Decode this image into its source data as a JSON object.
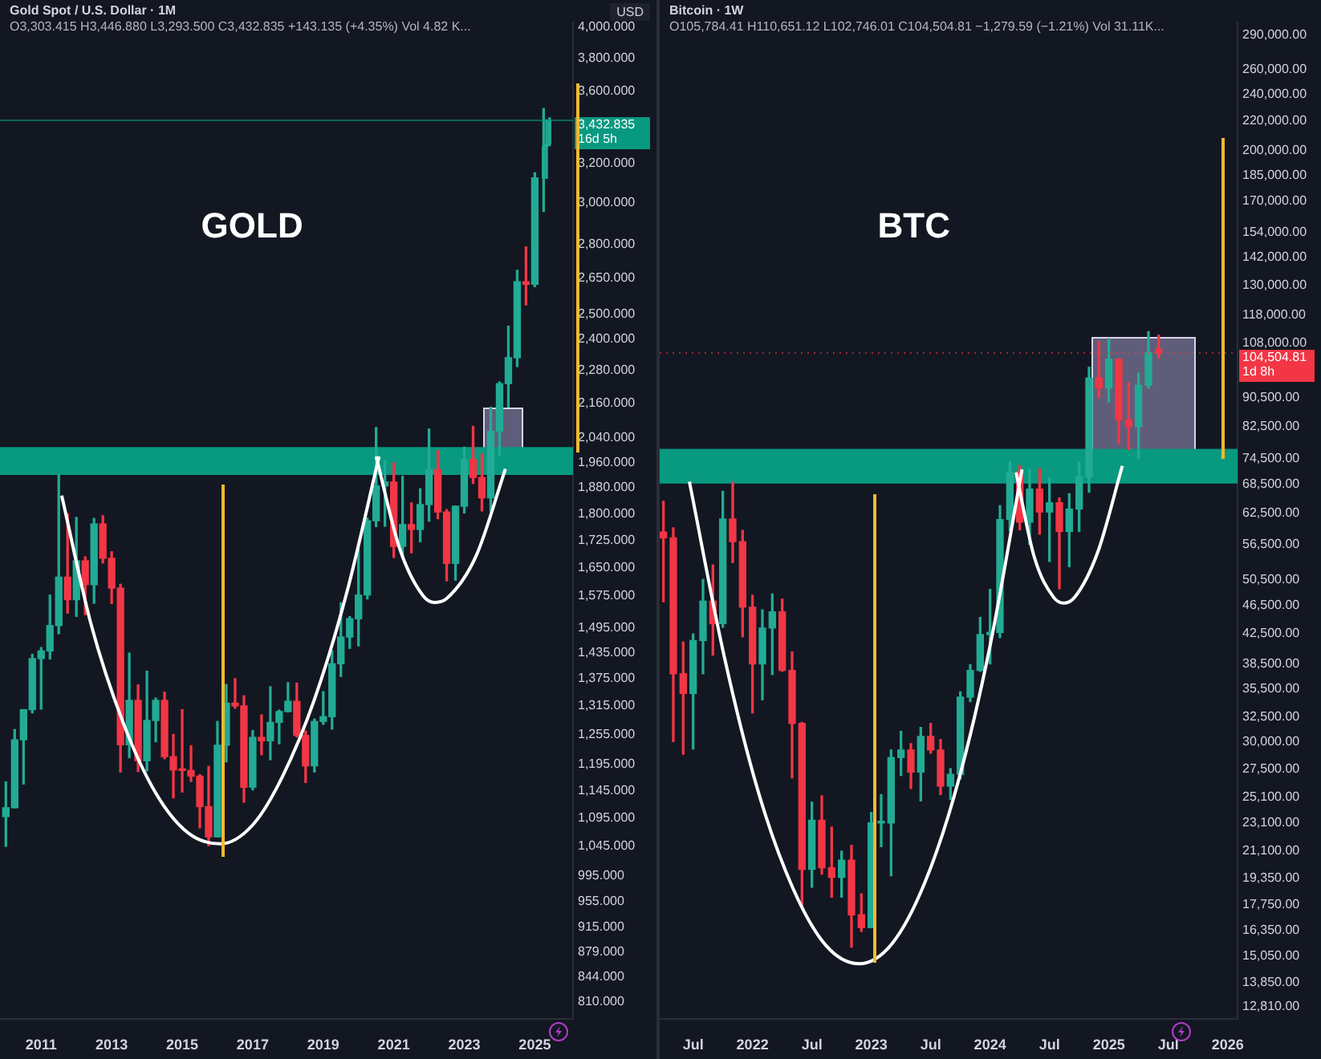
{
  "chart_data": [
    {
      "type": "candlestick",
      "title": "Gold Spot / U.S. Dollar · 1M",
      "subtitle": "O3,303.415 H3,446.880 L3,293.500 C3,432.835 +143.135 (+4.35%) Vol 4.82 K...",
      "ylabel": "USD",
      "annotations": [
        "GOLD"
      ],
      "log": true,
      "x": [
        "2010-01",
        "2010-04",
        "2010-07",
        "2010-10",
        "2011-01",
        "2011-04",
        "2011-07",
        "2011-10",
        "2012-01",
        "2012-04",
        "2012-07",
        "2012-10",
        "2013-01",
        "2013-04",
        "2013-07",
        "2013-10",
        "2014-01",
        "2014-04",
        "2014-07",
        "2014-10",
        "2015-01",
        "2015-04",
        "2015-07",
        "2015-10",
        "2016-01",
        "2016-04",
        "2016-07",
        "2016-10",
        "2017-01",
        "2017-04",
        "2017-07",
        "2017-10",
        "2018-01",
        "2018-04",
        "2018-07",
        "2018-10",
        "2019-01",
        "2019-04",
        "2019-07",
        "2019-10",
        "2020-01",
        "2020-04",
        "2020-07",
        "2020-10",
        "2021-01",
        "2021-04",
        "2021-07",
        "2021-10",
        "2022-01",
        "2022-04",
        "2022-07",
        "2022-10",
        "2023-01",
        "2023-04",
        "2023-07",
        "2023-10",
        "2024-01",
        "2024-04",
        "2024-07",
        "2024-10",
        "2025-01",
        "2025-04",
        "2025-05",
        "2025-06"
      ],
      "ohlc": [
        [
          1097,
          1161,
          1045,
          1113
        ],
        [
          1113,
          1265,
          1113,
          1244
        ],
        [
          1244,
          1307,
          1157,
          1307
        ],
        [
          1307,
          1431,
          1300,
          1421
        ],
        [
          1421,
          1447,
          1308,
          1439
        ],
        [
          1439,
          1577,
          1420,
          1500
        ],
        [
          1500,
          1920,
          1480,
          1624
        ],
        [
          1624,
          1802,
          1531,
          1565
        ],
        [
          1565,
          1791,
          1523,
          1668
        ],
        [
          1668,
          1679,
          1527,
          1604
        ],
        [
          1604,
          1788,
          1556,
          1772
        ],
        [
          1772,
          1796,
          1662,
          1675
        ],
        [
          1675,
          1693,
          1555,
          1595
        ],
        [
          1595,
          1605,
          1180,
          1234
        ],
        [
          1234,
          1434,
          1208,
          1327
        ],
        [
          1327,
          1361,
          1181,
          1202
        ],
        [
          1202,
          1392,
          1182,
          1284
        ],
        [
          1284,
          1332,
          1240,
          1327
        ],
        [
          1327,
          1345,
          1206,
          1210
        ],
        [
          1210,
          1255,
          1131,
          1184
        ],
        [
          1184,
          1307,
          1142,
          1183
        ],
        [
          1183,
          1232,
          1162,
          1172
        ],
        [
          1172,
          1175,
          1077,
          1115
        ],
        [
          1115,
          1191,
          1046,
          1061
        ],
        [
          1061,
          1282,
          1061,
          1233
        ],
        [
          1233,
          1362,
          1200,
          1321
        ],
        [
          1321,
          1375,
          1310,
          1315
        ],
        [
          1315,
          1337,
          1123,
          1151
        ],
        [
          1151,
          1263,
          1146,
          1249
        ],
        [
          1249,
          1296,
          1214,
          1242
        ],
        [
          1242,
          1357,
          1204,
          1280
        ],
        [
          1280,
          1306,
          1236,
          1303
        ],
        [
          1303,
          1366,
          1302,
          1325
        ],
        [
          1325,
          1365,
          1250,
          1253
        ],
        [
          1253,
          1262,
          1160,
          1192
        ],
        [
          1192,
          1287,
          1180,
          1282
        ],
        [
          1282,
          1346,
          1276,
          1292
        ],
        [
          1292,
          1439,
          1266,
          1409
        ],
        [
          1409,
          1557,
          1380,
          1472
        ],
        [
          1472,
          1522,
          1445,
          1517
        ],
        [
          1517,
          1703,
          1451,
          1577
        ],
        [
          1577,
          1789,
          1567,
          1781
        ],
        [
          1781,
          2075,
          1764,
          1886
        ],
        [
          1886,
          1965,
          1765,
          1898
        ],
        [
          1898,
          1959,
          1677,
          1708
        ],
        [
          1708,
          1916,
          1677,
          1770
        ],
        [
          1770,
          1834,
          1690,
          1756
        ],
        [
          1756,
          1877,
          1721,
          1829
        ],
        [
          1829,
          2070,
          1780,
          1937
        ],
        [
          1937,
          1998,
          1787,
          1807
        ],
        [
          1807,
          1814,
          1614,
          1661
        ],
        [
          1661,
          1825,
          1616,
          1824
        ],
        [
          1824,
          2009,
          1804,
          1969
        ],
        [
          1969,
          2079,
          1893,
          1912
        ],
        [
          1912,
          1987,
          1810,
          1849
        ],
        [
          1849,
          2146,
          1810,
          2063
        ],
        [
          2063,
          2236,
          1984,
          2230
        ],
        [
          2230,
          2450,
          2146,
          2327
        ],
        [
          2327,
          2685,
          2293,
          2635
        ],
        [
          2635,
          2790,
          2537,
          2624
        ],
        [
          2624,
          3150,
          2614,
          3124
        ],
        [
          3124,
          3500,
          2957,
          3289
        ],
        [
          3289,
          3435,
          3121,
          3303
        ],
        [
          3303.415,
          3446.88,
          3293.5,
          3432.835
        ]
      ],
      "xlim": [
        "2009-11",
        "2026-02"
      ],
      "xticks": [
        "2011",
        "2013",
        "2015",
        "2017",
        "2019",
        "2021",
        "2023",
        "2025"
      ],
      "ylim": [
        787,
        4030
      ],
      "yticks": [
        {
          "value": 4000,
          "label": "4,000.000"
        },
        {
          "value": 3800,
          "label": "3,800.000"
        },
        {
          "value": 3600,
          "label": "3,600.000"
        },
        {
          "value": 3200,
          "label": "3,200.000"
        },
        {
          "value": 3000,
          "label": "3,000.000"
        },
        {
          "value": 2800,
          "label": "2,800.000"
        },
        {
          "value": 2650,
          "label": "2,650.000"
        },
        {
          "value": 2500,
          "label": "2,500.000"
        },
        {
          "value": 2400,
          "label": "2,400.000"
        },
        {
          "value": 2280,
          "label": "2,280.000"
        },
        {
          "value": 2160,
          "label": "2,160.000"
        },
        {
          "value": 2040,
          "label": "2,040.000"
        },
        {
          "value": 1960,
          "label": "1,960.000"
        },
        {
          "value": 1880,
          "label": "1,880.000"
        },
        {
          "value": 1800,
          "label": "1,800.000"
        },
        {
          "value": 1725,
          "label": "1,725.000"
        },
        {
          "value": 1650,
          "label": "1,650.000"
        },
        {
          "value": 1575,
          "label": "1,575.000"
        },
        {
          "value": 1495,
          "label": "1,495.000"
        },
        {
          "value": 1435,
          "label": "1,435.000"
        },
        {
          "value": 1375,
          "label": "1,375.000"
        },
        {
          "value": 1315,
          "label": "1,315.000"
        },
        {
          "value": 1255,
          "label": "1,255.000"
        },
        {
          "value": 1195,
          "label": "1,195.000"
        },
        {
          "value": 1145,
          "label": "1,145.000"
        },
        {
          "value": 1095,
          "label": "1,095.000"
        },
        {
          "value": 1045,
          "label": "1,045.000"
        },
        {
          "value": 995,
          "label": "995.000"
        },
        {
          "value": 955,
          "label": "955.000"
        },
        {
          "value": 915,
          "label": "915.000"
        },
        {
          "value": 879,
          "label": "879.000"
        },
        {
          "value": 844,
          "label": "844.000"
        },
        {
          "value": 810,
          "label": "810.000"
        }
      ],
      "series": [
        {
          "type": "line",
          "color": "#ffffff",
          "x": [
            "2011-08",
            "2012-06",
            "2013-05",
            "2014-04",
            "2015-03",
            "2016-02",
            "2017-01",
            "2017-11",
            "2018-10",
            "2019-09",
            "2020-08"
          ],
          "values": [
            1856,
            1503,
            1278,
            1140,
            1068,
            1049,
            1082,
            1170,
            1329,
            1583,
            1979
          ]
        },
        {
          "type": "line",
          "color": "#ffffff",
          "x": [
            "2020-07",
            "2021-03",
            "2021-11",
            "2022-03",
            "2022-07",
            "2023-05",
            "2024-03"
          ],
          "values": [
            1979,
            1702,
            1575,
            1558,
            1568,
            1681,
            1939
          ]
        }
      ],
      "bands": [
        {
          "axis": "y",
          "from": 1920,
          "to": 2010,
          "color": "#089981"
        }
      ],
      "ref_lines": [
        {
          "axis": "y",
          "value": 3432.835,
          "label": "3,432.835\n16d 5h",
          "color": "#089981",
          "line_style": "solid"
        }
      ]
    },
    {
      "type": "candlestick",
      "title": "Bitcoin · 1W",
      "subtitle": "O105,784.41 H110,651.12 L102,746.01 C104,504.81 −1,279.59 (−1.21%) Vol 31.11K...",
      "annotations": [
        "BTC"
      ],
      "log": true,
      "x": [
        "2021-04",
        "2021-05",
        "2021-06",
        "2021-07",
        "2021-08",
        "2021-09",
        "2021-10",
        "2021-11",
        "2021-12",
        "2022-01",
        "2022-02",
        "2022-03",
        "2022-04",
        "2022-05",
        "2022-06",
        "2022-07",
        "2022-08",
        "2022-09",
        "2022-10",
        "2022-11",
        "2022-12",
        "2023-01",
        "2023-02",
        "2023-03",
        "2023-04",
        "2023-05",
        "2023-06",
        "2023-07",
        "2023-08",
        "2023-09",
        "2023-10",
        "2023-11",
        "2023-12",
        "2024-01",
        "2024-02",
        "2024-03",
        "2024-04",
        "2024-05",
        "2024-06",
        "2024-07",
        "2024-08",
        "2024-09",
        "2024-10",
        "2024-11",
        "2024-12",
        "2025-01",
        "2025-02",
        "2025-03",
        "2025-04",
        "2025-05",
        "2025-06-02"
      ],
      "ohlc": [
        [
          58800,
          64900,
          47000,
          57700
        ],
        [
          57700,
          59600,
          30000,
          37300
        ],
        [
          37300,
          41300,
          28800,
          35000
        ],
        [
          35000,
          42400,
          29300,
          41500
        ],
        [
          41500,
          50500,
          37300,
          47100
        ],
        [
          47100,
          52900,
          39600,
          43800
        ],
        [
          43800,
          67000,
          43300,
          61300
        ],
        [
          61300,
          69000,
          53300,
          57000
        ],
        [
          57000,
          59100,
          42000,
          46200
        ],
        [
          46200,
          48000,
          32900,
          38500
        ],
        [
          38500,
          45800,
          34300,
          43200
        ],
        [
          43200,
          48200,
          37200,
          45500
        ],
        [
          45500,
          47400,
          37600,
          37700
        ],
        [
          37700,
          40000,
          26700,
          31800
        ],
        [
          31800,
          31900,
          17600,
          19900
        ],
        [
          19900,
          24700,
          18800,
          23300
        ],
        [
          23300,
          25200,
          19600,
          20000
        ],
        [
          20000,
          22800,
          18200,
          19400
        ],
        [
          19400,
          21100,
          18200,
          20500
        ],
        [
          20500,
          21500,
          15500,
          17200
        ],
        [
          17200,
          18400,
          16300,
          16500
        ],
        [
          16500,
          23900,
          16500,
          23100
        ],
        [
          23100,
          25300,
          21400,
          23100
        ],
        [
          23100,
          29200,
          19500,
          28500
        ],
        [
          28500,
          31000,
          26900,
          29200
        ],
        [
          29200,
          29800,
          25800,
          27200
        ],
        [
          27200,
          31400,
          24800,
          30500
        ],
        [
          30500,
          31800,
          28900,
          29200
        ],
        [
          29200,
          30200,
          25300,
          26000
        ],
        [
          26000,
          27500,
          24900,
          27000
        ],
        [
          27000,
          35200,
          26600,
          34600
        ],
        [
          34600,
          38400,
          34100,
          37700
        ],
        [
          37700,
          44700,
          37600,
          42300
        ],
        [
          42300,
          48900,
          38500,
          42600
        ],
        [
          42600,
          64000,
          41900,
          61200
        ],
        [
          61200,
          73800,
          59000,
          71300
        ],
        [
          71300,
          72800,
          59200,
          60700
        ],
        [
          60700,
          71900,
          56500,
          67500
        ],
        [
          67500,
          72000,
          58400,
          62700
        ],
        [
          62700,
          70000,
          53500,
          64600
        ],
        [
          64600,
          65600,
          49000,
          58900
        ],
        [
          58900,
          66500,
          52600,
          63300
        ],
        [
          63300,
          73600,
          58900,
          70200
        ],
        [
          70200,
          99800,
          66800,
          96400
        ],
        [
          96400,
          108300,
          90500,
          93400
        ],
        [
          93400,
          109400,
          89200,
          102400
        ],
        [
          102400,
          102500,
          78200,
          84300
        ],
        [
          84300,
          95000,
          76600,
          82500
        ],
        [
          82500,
          97900,
          74400,
          94200
        ],
        [
          94200,
          111900,
          93300,
          104600
        ],
        [
          105784.41,
          110651.12,
          102746.01,
          104504.81
        ]
      ],
      "xlim": [
        "2021-03-20",
        "2026-02"
      ],
      "xticks": [
        {
          "value": "2021-07",
          "label": "Jul"
        },
        "2022",
        {
          "value": "2022-07",
          "label": "Jul"
        },
        "2023",
        {
          "value": "2023-07",
          "label": "Jul"
        },
        "2024",
        {
          "value": "2024-07",
          "label": "Jul"
        },
        "2025",
        {
          "value": "2025-07",
          "label": "Jul"
        },
        "2026"
      ],
      "ylim": [
        12300,
        302000
      ],
      "yticks": [
        {
          "value": 290000,
          "label": "290,000.00"
        },
        {
          "value": 260000,
          "label": "260,000.00"
        },
        {
          "value": 240000,
          "label": "240,000.00"
        },
        {
          "value": 220000,
          "label": "220,000.00"
        },
        {
          "value": 200000,
          "label": "200,000.00"
        },
        {
          "value": 185000,
          "label": "185,000.00"
        },
        {
          "value": 170000,
          "label": "170,000.00"
        },
        {
          "value": 154000,
          "label": "154,000.00"
        },
        {
          "value": 142000,
          "label": "142,000.00"
        },
        {
          "value": 130000,
          "label": "130,000.00"
        },
        {
          "value": 118000,
          "label": "118,000.00"
        },
        {
          "value": 108000,
          "label": "108,000.00"
        },
        {
          "value": 90500,
          "label": "90,500.00"
        },
        {
          "value": 82500,
          "label": "82,500.00"
        },
        {
          "value": 74500,
          "label": "74,500.00"
        },
        {
          "value": 68500,
          "label": "68,500.00"
        },
        {
          "value": 62500,
          "label": "62,500.00"
        },
        {
          "value": 56500,
          "label": "56,500.00"
        },
        {
          "value": 50500,
          "label": "50,500.00"
        },
        {
          "value": 46500,
          "label": "46,500.00"
        },
        {
          "value": 42500,
          "label": "42,500.00"
        },
        {
          "value": 38500,
          "label": "38,500.00"
        },
        {
          "value": 35500,
          "label": "35,500.00"
        },
        {
          "value": 32500,
          "label": "32,500.00"
        },
        {
          "value": 30000,
          "label": "30,000.00"
        },
        {
          "value": 27500,
          "label": "27,500.00"
        },
        {
          "value": 25100,
          "label": "25,100.00"
        },
        {
          "value": 23100,
          "label": "23,100.00"
        },
        {
          "value": 21100,
          "label": "21,100.00"
        },
        {
          "value": 19350,
          "label": "19,350.00"
        },
        {
          "value": 17750,
          "label": "17,750.00"
        },
        {
          "value": 16350,
          "label": "16,350.00"
        },
        {
          "value": 15050,
          "label": "15,050.00"
        },
        {
          "value": 13850,
          "label": "13,850.00"
        },
        {
          "value": 12810,
          "label": "12,810.00"
        }
      ],
      "series": [
        {
          "type": "line",
          "color": "#ffffff",
          "x": [
            "2021-06-20",
            "2021-10-05",
            "2022-01-18",
            "2022-05-02",
            "2022-08-13",
            "2022-11-24",
            "2023-03-05",
            "2023-06-14",
            "2023-09-23",
            "2024-01-01",
            "2024-04-08"
          ],
          "values": [
            69100,
            39500,
            25600,
            18800,
            15600,
            14700,
            15700,
            19100,
            26200,
            40800,
            71900
          ]
        },
        {
          "type": "line",
          "color": "#ffffff",
          "x": [
            "2024-03-20",
            "2024-05-15",
            "2024-07-15",
            "2024-08-15",
            "2024-09-18",
            "2024-11-27",
            "2025-02-12"
          ],
          "values": [
            71200,
            54300,
            47600,
            46800,
            47700,
            55000,
            72700
          ]
        }
      ],
      "bands": [
        {
          "axis": "y",
          "from": 68700,
          "to": 76800,
          "color": "#089981"
        }
      ],
      "ref_lines": [
        {
          "axis": "y",
          "value": 104504.81,
          "label": "104,504.81\n1d 8h",
          "color": "#f23645",
          "line_style": "dotted"
        }
      ]
    }
  ]
}
